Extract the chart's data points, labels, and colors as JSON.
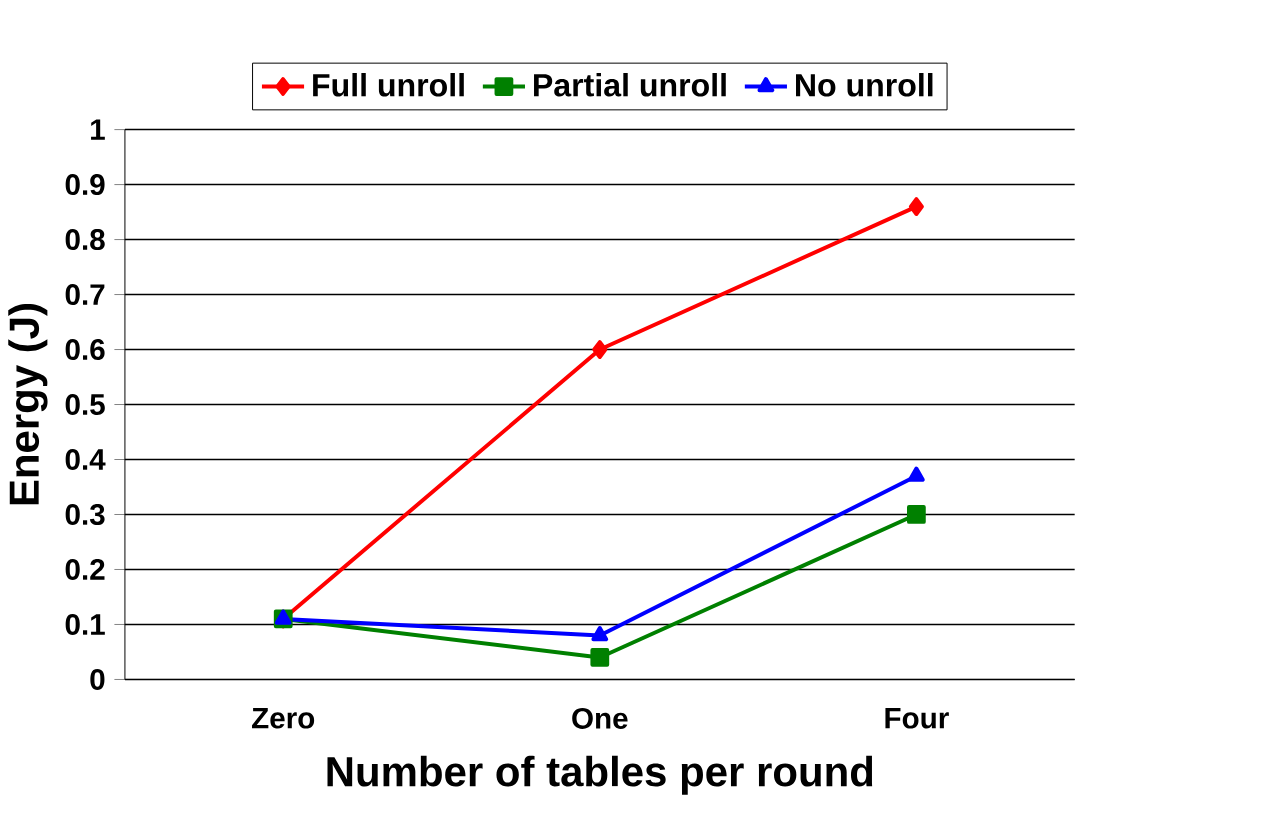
{
  "chart_data": {
    "type": "line",
    "xlabel": "Number of tables per round",
    "ylabel": "Energy (J)",
    "categories": [
      "Zero",
      "One",
      "Four"
    ],
    "series": [
      {
        "name": "Full unroll",
        "color": "#ff0000",
        "marker": "diamond",
        "values": [
          0.11,
          0.6,
          0.86
        ]
      },
      {
        "name": "Partial unroll",
        "color": "#008000",
        "marker": "square",
        "values": [
          0.11,
          0.04,
          0.3
        ]
      },
      {
        "name": "No unroll",
        "color": "#0000ff",
        "marker": "triangle",
        "values": [
          0.11,
          0.08,
          0.37
        ]
      }
    ],
    "ylim": [
      0,
      1
    ],
    "yticks": [
      0,
      0.1,
      0.2,
      0.3,
      0.4,
      0.5,
      0.6,
      0.7,
      0.8,
      0.9,
      1
    ],
    "grid": "y",
    "legend": "top",
    "line_style": "solid"
  }
}
